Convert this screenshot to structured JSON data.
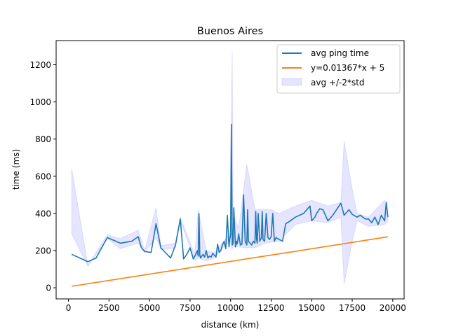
{
  "chart_data": {
    "type": "line",
    "title": "Buenos Aires",
    "xlabel": "distance (km)",
    "ylabel": "time (ms)",
    "xlim": [
      -760,
      20700
    ],
    "ylim": [
      -60,
      1330
    ],
    "x_ticks": [
      0,
      2500,
      5000,
      7500,
      10000,
      12500,
      15000,
      17500,
      20000
    ],
    "x_tick_labels": [
      "0",
      "2500",
      "5000",
      "7500",
      "10000",
      "12500",
      "15000",
      "17500",
      "20000"
    ],
    "y_ticks": [
      0,
      200,
      400,
      600,
      800,
      1000,
      1200
    ],
    "y_tick_labels": [
      "0",
      "200",
      "400",
      "600",
      "800",
      "1000",
      "1200"
    ],
    "grid": false,
    "legend_position": "top-right",
    "series": [
      {
        "name": "avg ping time",
        "kind": "line",
        "color": "#1f77b4",
        "x": [
          200,
          1200,
          1700,
          2400,
          3200,
          3900,
          4300,
          4500,
          4700,
          5100,
          5400,
          5700,
          6300,
          6600,
          6900,
          7100,
          7300,
          7500,
          7700,
          7800,
          7950,
          8000,
          8050,
          8100,
          8150,
          8300,
          8400,
          8500,
          8600,
          8700,
          8800,
          8900,
          9000,
          9100,
          9200,
          9300,
          9400,
          9500,
          9600,
          9700,
          9800,
          9900,
          9950,
          10000,
          10050,
          10100,
          10150,
          10200,
          10300,
          10350,
          10400,
          10450,
          10500,
          10600,
          10700,
          10800,
          10900,
          11000,
          11050,
          11100,
          11200,
          11300,
          11400,
          11500,
          11550,
          11600,
          11650,
          11700,
          11800,
          11900,
          11950,
          12000,
          12100,
          12200,
          12300,
          12400,
          12500,
          12600,
          12700,
          12800,
          13000,
          13200,
          13400,
          13600,
          14000,
          14500,
          14900,
          15000,
          15200,
          15300,
          15500,
          15700,
          16000,
          16300,
          16800,
          17000,
          17300,
          17500,
          17700,
          17800,
          18000,
          18300,
          18500,
          18700,
          18900,
          19100,
          19300,
          19500,
          19600,
          19700
        ],
        "y": [
          180,
          140,
          160,
          270,
          240,
          250,
          275,
          215,
          195,
          190,
          345,
          215,
          160,
          230,
          370,
          155,
          180,
          215,
          155,
          170,
          200,
          170,
          400,
          175,
          160,
          180,
          165,
          200,
          160,
          170,
          165,
          185,
          175,
          165,
          235,
          190,
          200,
          230,
          250,
          210,
          390,
          220,
          260,
          285,
          880,
          230,
          240,
          430,
          220,
          250,
          235,
          260,
          290,
          230,
          235,
          500,
          250,
          230,
          420,
          250,
          240,
          230,
          250,
          240,
          410,
          260,
          240,
          400,
          250,
          270,
          410,
          260,
          250,
          400,
          270,
          260,
          275,
          400,
          250,
          270,
          260,
          250,
          345,
          355,
          380,
          400,
          440,
          360,
          380,
          400,
          425,
          420,
          360,
          390,
          455,
          390,
          420,
          395,
          385,
          380,
          390,
          370,
          370,
          350,
          380,
          340,
          390,
          360,
          460,
          380
        ]
      },
      {
        "name": "y=0.01367*x + 5",
        "kind": "line",
        "color": "#ff7f0e",
        "x": [
          200,
          19700
        ],
        "y": [
          7.7,
          274.3
        ]
      },
      {
        "name": "avg +/-2*std",
        "kind": "band",
        "color": "#0000ff",
        "x": [
          200,
          1200,
          2400,
          3200,
          4300,
          4700,
          5400,
          5700,
          6600,
          6900,
          7800,
          8000,
          8500,
          9000,
          9500,
          10000,
          10050,
          10100,
          10150,
          10500,
          11000,
          11500,
          12000,
          12500,
          13000,
          14000,
          15000,
          16000,
          16800,
          17000,
          17500,
          17800,
          18500,
          19500,
          19700
        ],
        "upper": [
          640,
          120,
          285,
          265,
          310,
          200,
          430,
          225,
          240,
          380,
          180,
          420,
          200,
          190,
          240,
          300,
          900,
          1270,
          400,
          320,
          665,
          420,
          420,
          420,
          400,
          440,
          470,
          440,
          460,
          790,
          530,
          400,
          380,
          470,
          400
        ],
        "lower": [
          290,
          115,
          265,
          210,
          240,
          190,
          270,
          205,
          215,
          360,
          145,
          160,
          145,
          160,
          215,
          250,
          210,
          210,
          220,
          220,
          215,
          215,
          235,
          245,
          250,
          340,
          360,
          350,
          380,
          20,
          250,
          360,
          330,
          340,
          360
        ]
      }
    ]
  }
}
